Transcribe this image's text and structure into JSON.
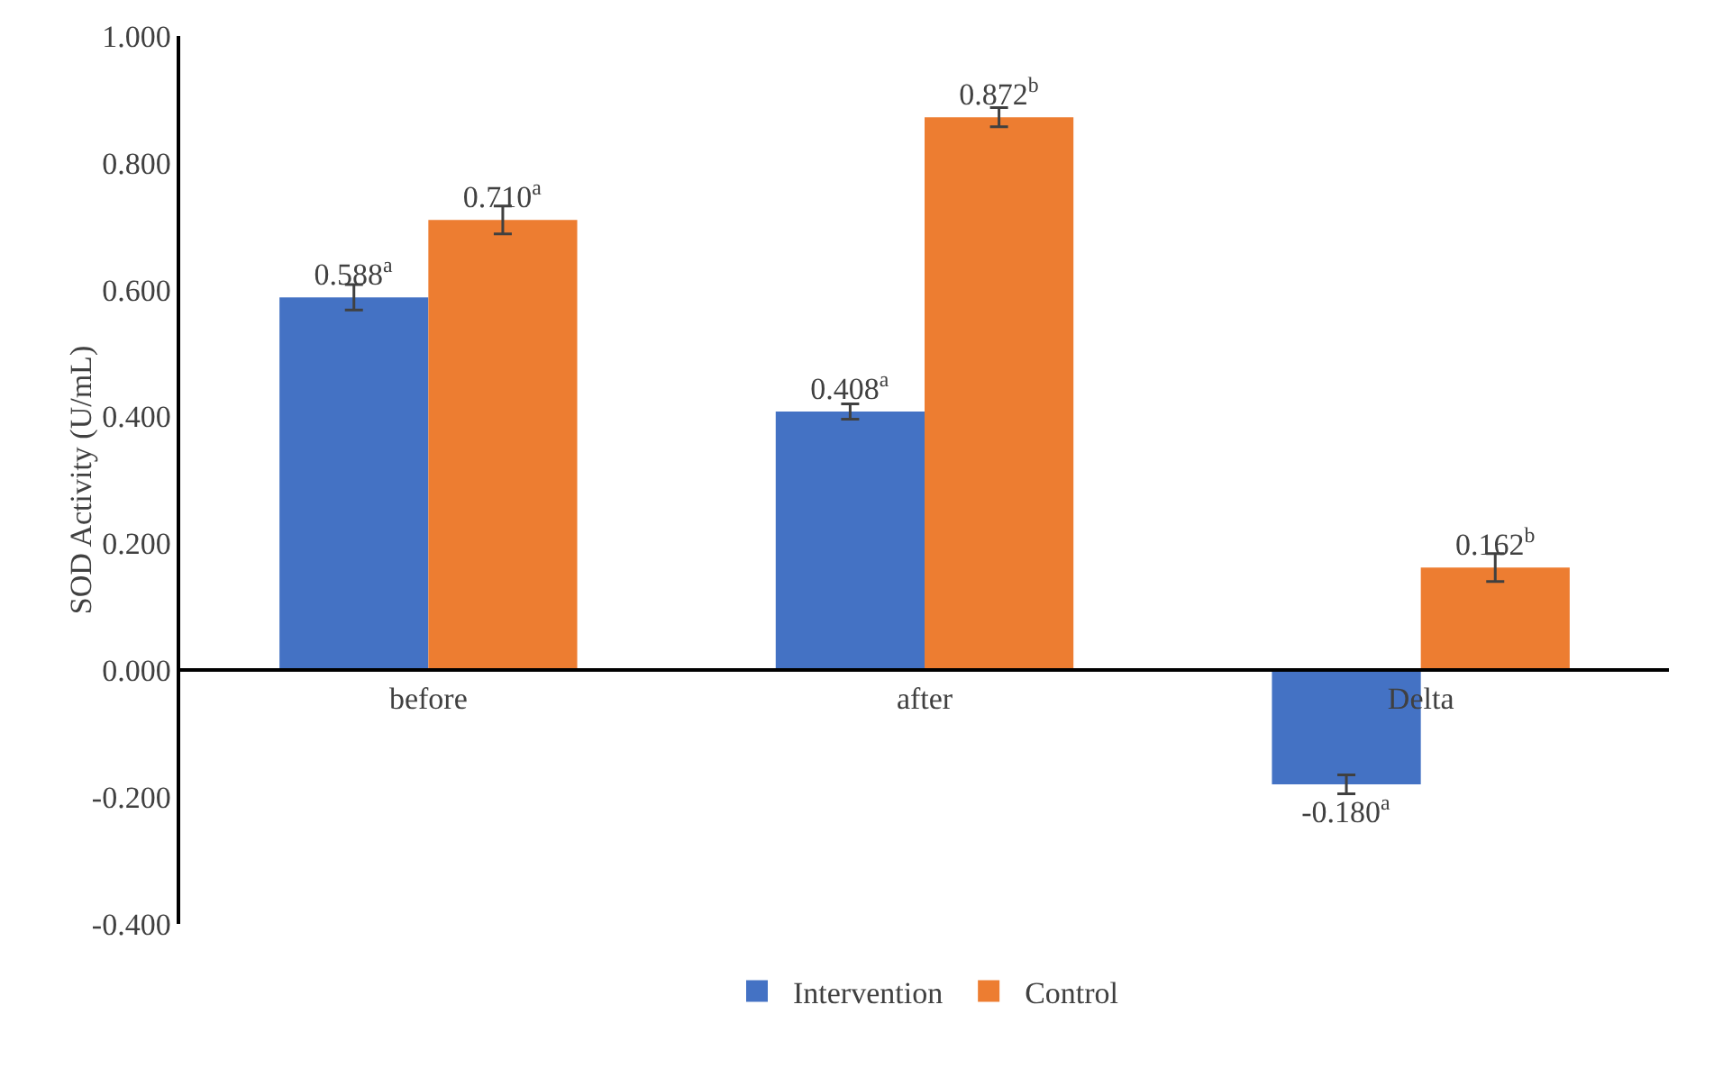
{
  "chart_data": {
    "type": "bar",
    "ylabel": "SOD Activity (U/mL)",
    "categories": [
      "before",
      "after",
      "Delta"
    ],
    "series": [
      {
        "name": "Intervention",
        "color": "#4472c4",
        "values": [
          0.588,
          0.408,
          -0.18
        ],
        "errors": [
          0.02,
          0.012,
          0.015
        ],
        "value_labels": [
          "0.588$^{a}$",
          "0.408$^{a}$",
          "-0.180$^{a}$"
        ]
      },
      {
        "name": "Control",
        "color": "#ed7d31",
        "values": [
          0.71,
          0.872,
          0.162
        ],
        "errors": [
          0.022,
          0.015,
          0.022
        ],
        "value_labels": [
          "0.710$^{a}$",
          "0.872$^{b}$",
          "0.162$^{b}$"
        ]
      }
    ],
    "ylim": [
      -0.4,
      1.0
    ],
    "yticks": [
      {
        "value": -0.4,
        "label": "-0.400"
      },
      {
        "value": -0.2,
        "label": "-0.200"
      },
      {
        "value": 0,
        "label": "0.000"
      },
      {
        "value": 0.2,
        "label": "0.200"
      },
      {
        "value": 0.4,
        "label": "0.400"
      },
      {
        "value": 0.6,
        "label": "0.600"
      },
      {
        "value": 0.8,
        "label": "0.800"
      },
      {
        "value": 1.0,
        "label": "1.000"
      }
    ],
    "grid": false,
    "legend": "bottom"
  }
}
